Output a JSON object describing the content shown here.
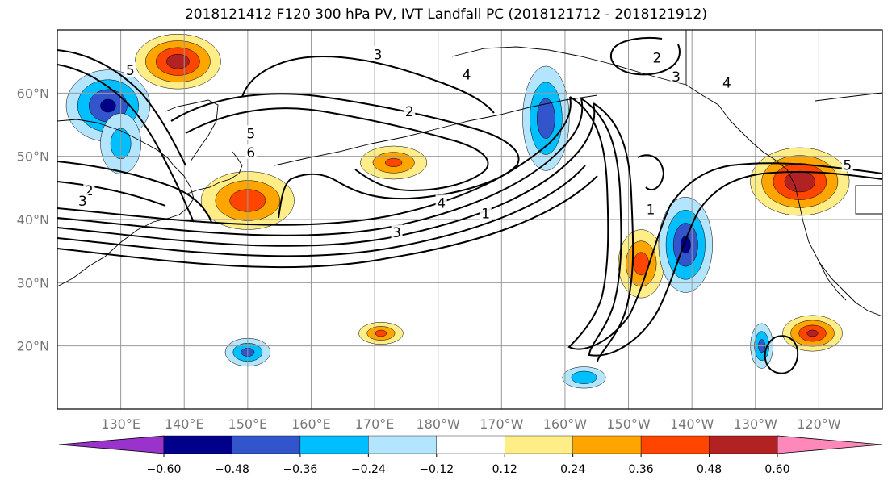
{
  "title": "2018121412 F120 300 hPa PV, IVT Landfall PC (2018121712 - 2018121912)",
  "map": {
    "lon_min": 120,
    "lon_max": 250,
    "lat_min": 10,
    "lat_max": 70,
    "lat_ticks": [
      {
        "lat": 60,
        "label": "60°N"
      },
      {
        "lat": 50,
        "label": "50°N"
      },
      {
        "lat": 40,
        "label": "40°N"
      },
      {
        "lat": 30,
        "label": "30°N"
      },
      {
        "lat": 20,
        "label": "20°N"
      }
    ],
    "lon_ticks": [
      {
        "lon": 130,
        "label": "130°E"
      },
      {
        "lon": 140,
        "label": "140°E"
      },
      {
        "lon": 150,
        "label": "150°E"
      },
      {
        "lon": 160,
        "label": "160°E"
      },
      {
        "lon": 170,
        "label": "170°E"
      },
      {
        "lon": 180,
        "label": "180°W"
      },
      {
        "lon": 190,
        "label": "170°W"
      },
      {
        "lon": 200,
        "label": "160°W"
      },
      {
        "lon": 210,
        "label": "150°W"
      },
      {
        "lon": 220,
        "label": "140°W"
      },
      {
        "lon": 230,
        "label": "130°W"
      },
      {
        "lon": 240,
        "label": "120°W"
      }
    ]
  },
  "colorbar": {
    "colors": [
      "#9933cc",
      "#00008b",
      "#3355cc",
      "#00bfff",
      "#b3e5ff",
      "#ffffff",
      "#ffee88",
      "#ffa500",
      "#ff4500",
      "#b22222",
      "#ff88bb"
    ],
    "labels": [
      "−0.60",
      "−0.48",
      "−0.36",
      "−0.24",
      "−0.12",
      "0.12",
      "0.24",
      "0.36",
      "0.48",
      "0.60"
    ]
  },
  "contour_labels": [
    {
      "text": "5",
      "lon": 131.5,
      "lat": 63.5
    },
    {
      "text": "3",
      "lon": 170.5,
      "lat": 66
    },
    {
      "text": "4",
      "lon": 184.5,
      "lat": 62.8
    },
    {
      "text": "2",
      "lon": 214.5,
      "lat": 65.5
    },
    {
      "text": "3",
      "lon": 217.5,
      "lat": 62.5
    },
    {
      "text": "4",
      "lon": 225.5,
      "lat": 61.5
    },
    {
      "text": "2",
      "lon": 175.5,
      "lat": 57
    },
    {
      "text": "5",
      "lon": 150.5,
      "lat": 53.5
    },
    {
      "text": "6",
      "lon": 150.5,
      "lat": 50.5
    },
    {
      "text": "2",
      "lon": 125,
      "lat": 44.5
    },
    {
      "text": "3",
      "lon": 124,
      "lat": 42.8
    },
    {
      "text": "4",
      "lon": 180.5,
      "lat": 42.5
    },
    {
      "text": "1",
      "lon": 187.5,
      "lat": 40.8
    },
    {
      "text": "3",
      "lon": 173.5,
      "lat": 37.8
    },
    {
      "text": "1",
      "lon": 213.5,
      "lat": 41.5
    },
    {
      "text": "5",
      "lon": 244.5,
      "lat": 48.5
    }
  ],
  "pv_anomalies": [
    {
      "lon": 139,
      "lat": 65,
      "rx": 7,
      "ry": 4.5,
      "value": 0.55
    },
    {
      "lon": 128,
      "lat": 58,
      "rx": 7,
      "ry": 6,
      "value": -0.5
    },
    {
      "lon": 130,
      "lat": 52,
      "rx": 4,
      "ry": 6,
      "value": -0.3
    },
    {
      "lon": 150,
      "lat": 43,
      "rx": 8,
      "ry": 5,
      "value": 0.45
    },
    {
      "lon": 173,
      "lat": 49,
      "rx": 6,
      "ry": 3,
      "value": 0.38
    },
    {
      "lon": 197,
      "lat": 56,
      "rx": 4,
      "ry": 9,
      "value": -0.45
    },
    {
      "lon": 212,
      "lat": 33,
      "rx": 4,
      "ry": 6,
      "value": 0.42
    },
    {
      "lon": 219,
      "lat": 36,
      "rx": 4.5,
      "ry": 8,
      "value": -0.5
    },
    {
      "lon": 237,
      "lat": 46,
      "rx": 8,
      "ry": 5.5,
      "value": 0.58
    },
    {
      "lon": 239,
      "lat": 22,
      "rx": 5,
      "ry": 3,
      "value": 0.5
    },
    {
      "lon": 150,
      "lat": 19,
      "rx": 4,
      "ry": 2.5,
      "value": -0.4
    },
    {
      "lon": 171,
      "lat": 22,
      "rx": 4,
      "ry": 2,
      "value": 0.38
    },
    {
      "lon": 203,
      "lat": 15,
      "rx": 4,
      "ry": 2,
      "value": -0.35
    },
    {
      "lon": 231,
      "lat": 20,
      "rx": 2,
      "ry": 4,
      "value": -0.4
    }
  ]
}
